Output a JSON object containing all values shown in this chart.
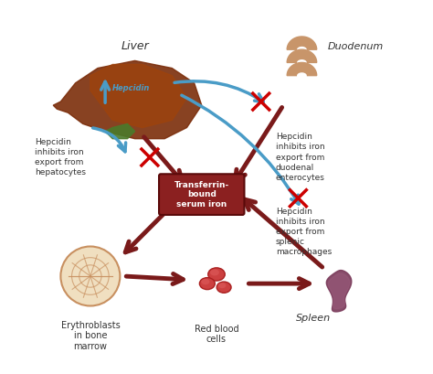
{
  "bg_color": "#ffffff",
  "title": "",
  "labels": {
    "liver": "Liver",
    "duodenum": "Duodenum",
    "hepcidin": "Hepcidin",
    "transferrin_box": "Transferrin-\nbound\nserum iron",
    "hepcidin_hepatocytes": "Hepcidin\ninhibits iron\nexport from\nhepatocytes",
    "hepcidin_duodenal": "Hepcidin\ninhibits iron\nexport from\nduodenal\nenterocytes",
    "hepcidin_splenic": "Hepcidin\ninhibits iron\nexport from\nsplenic\nmacrophages",
    "erythroblasts": "Erythroblasts\nin bone\nmarrow",
    "red_blood_cells": "Red blood\ncells",
    "spleen": "Spleen"
  },
  "dark_red": "#7A1A1A",
  "blue": "#4A9CC7",
  "cross_color": "#CC0000",
  "transferrin_box_bg": "#8B2020",
  "transferrin_box_text": "#FFFFFF",
  "liver_dark": "#7B2D0A",
  "liver_light": "#A0430A",
  "gall_color": "#4A7A2A",
  "duo_color": "#C8956A",
  "eb_face": "#F0DFC0",
  "eb_edge": "#C89060",
  "rbc_face": "#CC4040",
  "rbc_edge": "#AA2020",
  "rbc_hi": "#E06060",
  "spleen_dark": "#7A3A5A",
  "spleen_light": "#9A5A7A",
  "label_color": "#333333"
}
